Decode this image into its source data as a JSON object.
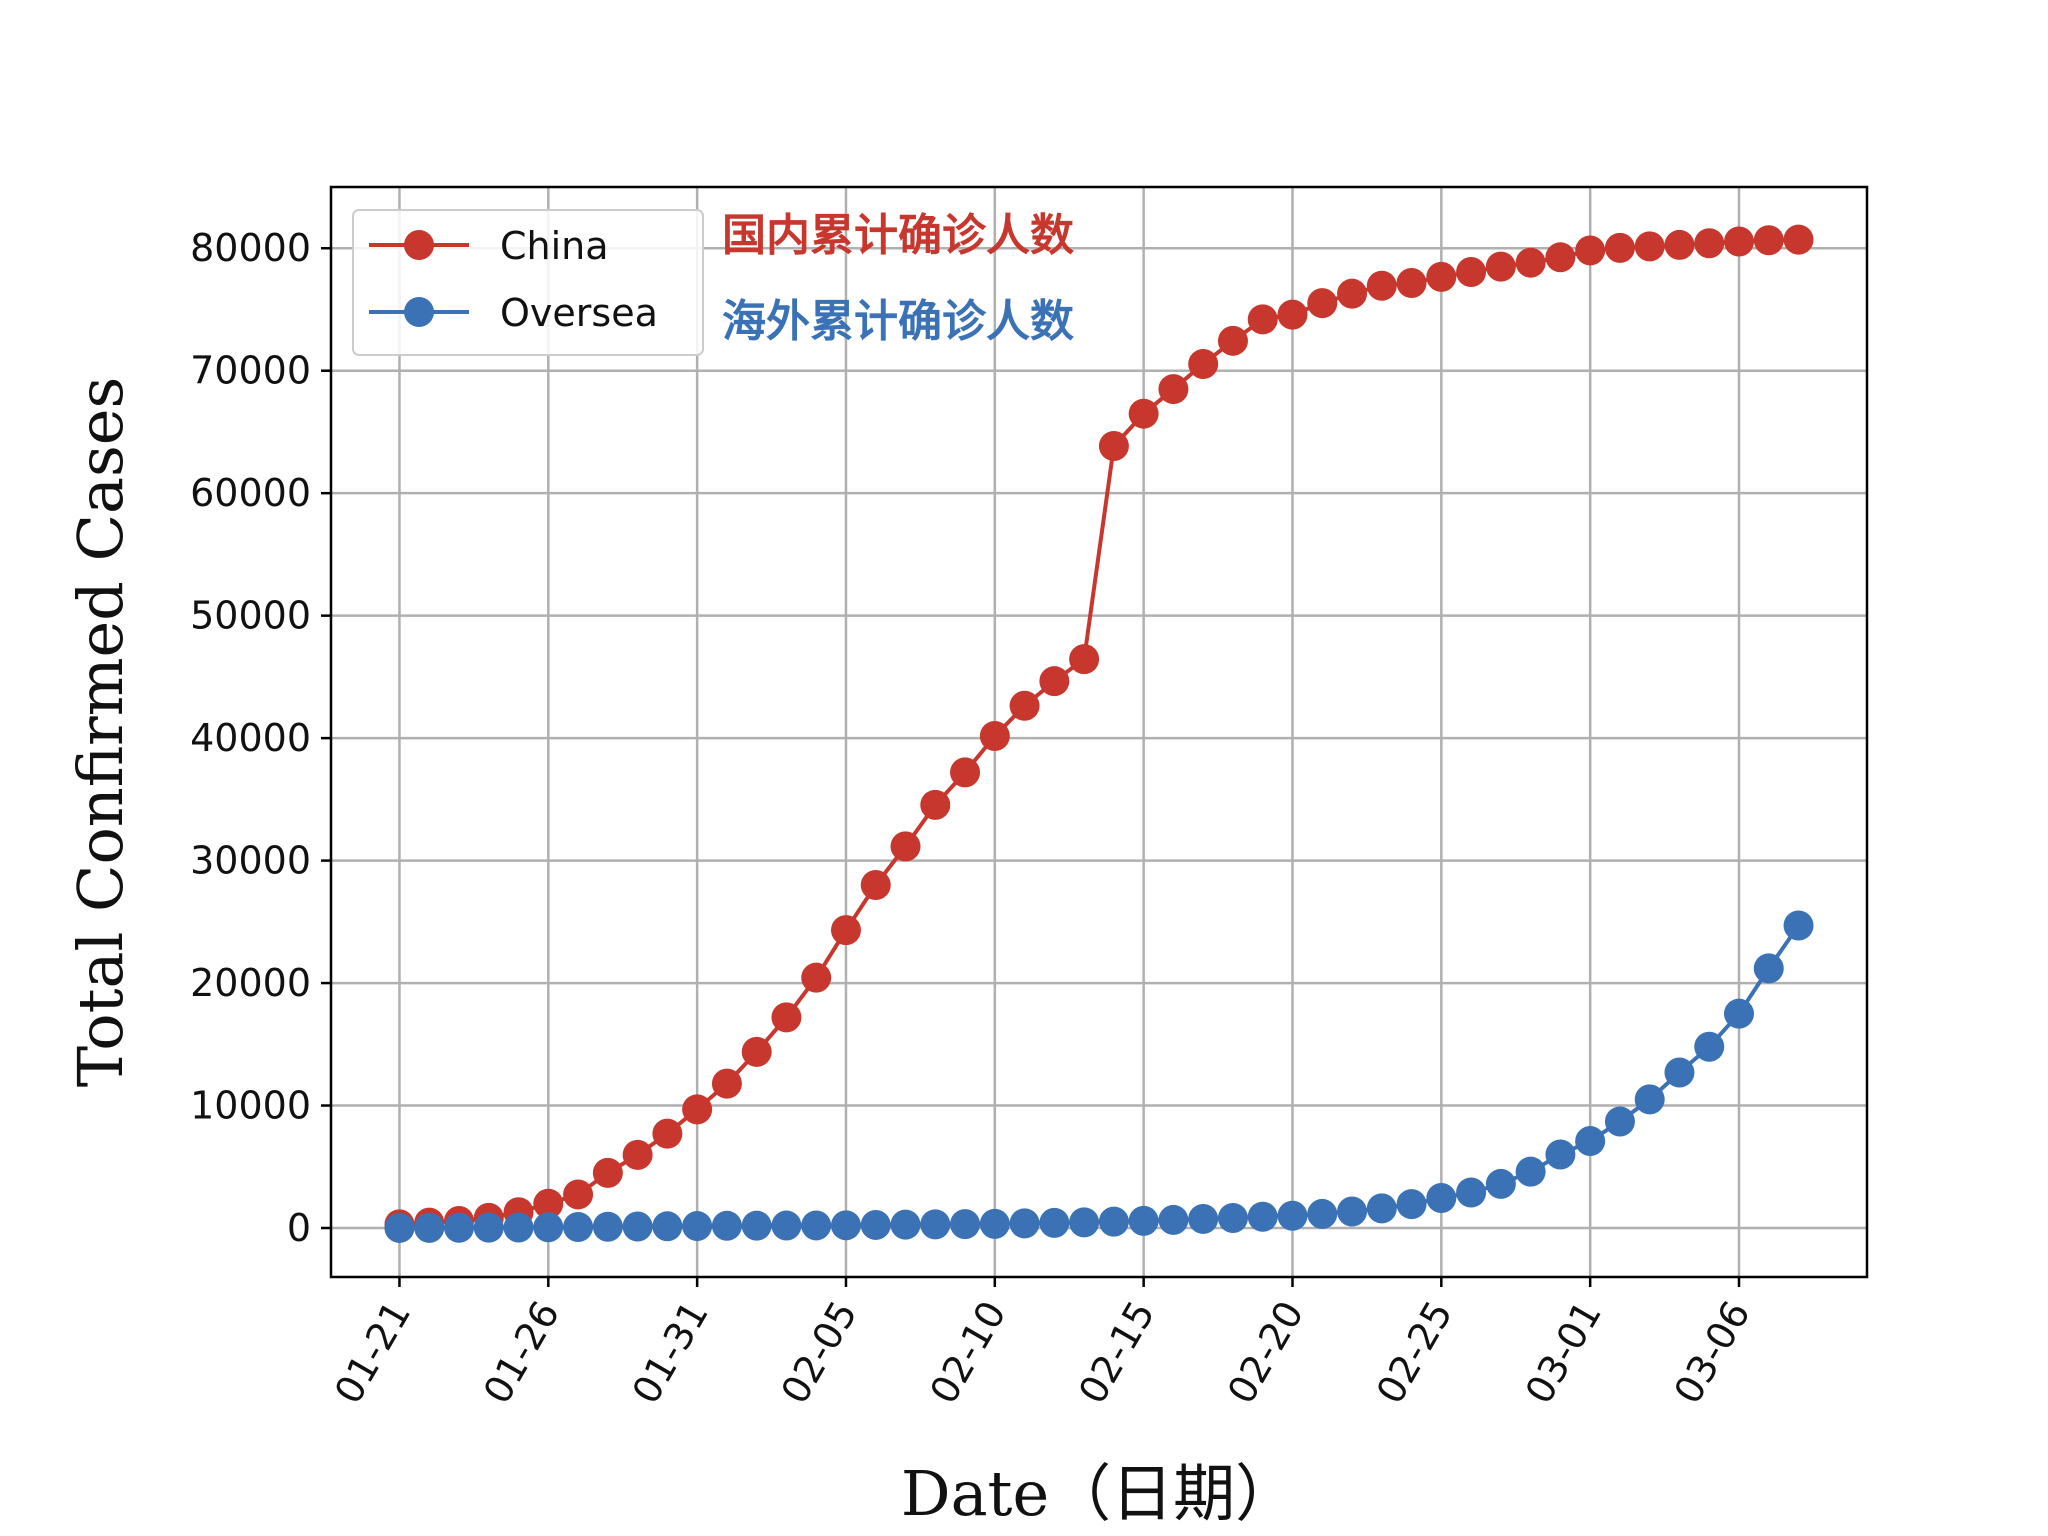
{
  "colors": {
    "china": "#c8372d",
    "oversea": "#3a72b5",
    "grid": "#b0b0b0",
    "axis": "#000000"
  },
  "chart_data": {
    "type": "line",
    "title": "",
    "xlabel": "Date（日期）",
    "ylabel": "Total Confirmed Cases",
    "ylim": [
      -4000,
      85000
    ],
    "xlim": [
      -2.3,
      49.3
    ],
    "grid": true,
    "legend": "top-left",
    "yticks": [
      0,
      10000,
      20000,
      30000,
      40000,
      50000,
      60000,
      70000,
      80000
    ],
    "yticklabels": [
      "0",
      "10000",
      "20000",
      "30000",
      "40000",
      "50000",
      "60000",
      "70000",
      "80000"
    ],
    "xticks": [
      0,
      5,
      10,
      15,
      20,
      25,
      30,
      35,
      40,
      45
    ],
    "xticklabels": [
      "01-21",
      "01-26",
      "01-31",
      "02-05",
      "02-10",
      "02-15",
      "02-20",
      "02-25",
      "03-01",
      "03-06"
    ],
    "x": [
      "01-21",
      "01-22",
      "01-23",
      "01-24",
      "01-25",
      "01-26",
      "01-27",
      "01-28",
      "01-29",
      "01-30",
      "01-31",
      "02-01",
      "02-02",
      "02-03",
      "02-04",
      "02-05",
      "02-06",
      "02-07",
      "02-08",
      "02-09",
      "02-10",
      "02-11",
      "02-12",
      "02-13",
      "02-14",
      "02-15",
      "02-16",
      "02-17",
      "02-18",
      "02-19",
      "02-20",
      "02-21",
      "02-22",
      "02-23",
      "02-24",
      "02-25",
      "02-26",
      "02-27",
      "02-28",
      "02-29",
      "03-01",
      "03-02",
      "03-03",
      "03-04",
      "03-05",
      "03-06",
      "03-07",
      "03-08"
    ],
    "series": [
      {
        "name": "China",
        "color": "#c8372d",
        "values": [
          300,
          440,
          570,
          830,
          1290,
          1980,
          2740,
          4500,
          5970,
          7710,
          9690,
          11790,
          14380,
          17200,
          20440,
          24320,
          28010,
          31160,
          34550,
          37200,
          40170,
          42640,
          44650,
          46450,
          63850,
          66490,
          68500,
          70550,
          72440,
          74190,
          74580,
          75520,
          76290,
          76940,
          77160,
          77660,
          78060,
          78500,
          78820,
          79260,
          79820,
          80030,
          80150,
          80270,
          80410,
          80550,
          80650,
          80700
        ]
      },
      {
        "name": "Oversea",
        "color": "#3a72b5",
        "values": [
          5,
          10,
          20,
          30,
          45,
          60,
          80,
          100,
          120,
          140,
          160,
          180,
          190,
          200,
          210,
          220,
          250,
          280,
          300,
          320,
          340,
          380,
          420,
          460,
          520,
          580,
          660,
          740,
          820,
          920,
          1000,
          1150,
          1350,
          1600,
          1950,
          2450,
          2900,
          3600,
          4600,
          6000,
          7100,
          8700,
          10500,
          12700,
          14800,
          17500,
          21200,
          24700
        ]
      }
    ],
    "annotations": [
      {
        "text": "国内累计确诊人数",
        "color": "#c8372d"
      },
      {
        "text": "海外累计确诊人数",
        "color": "#3a72b5"
      }
    ]
  }
}
